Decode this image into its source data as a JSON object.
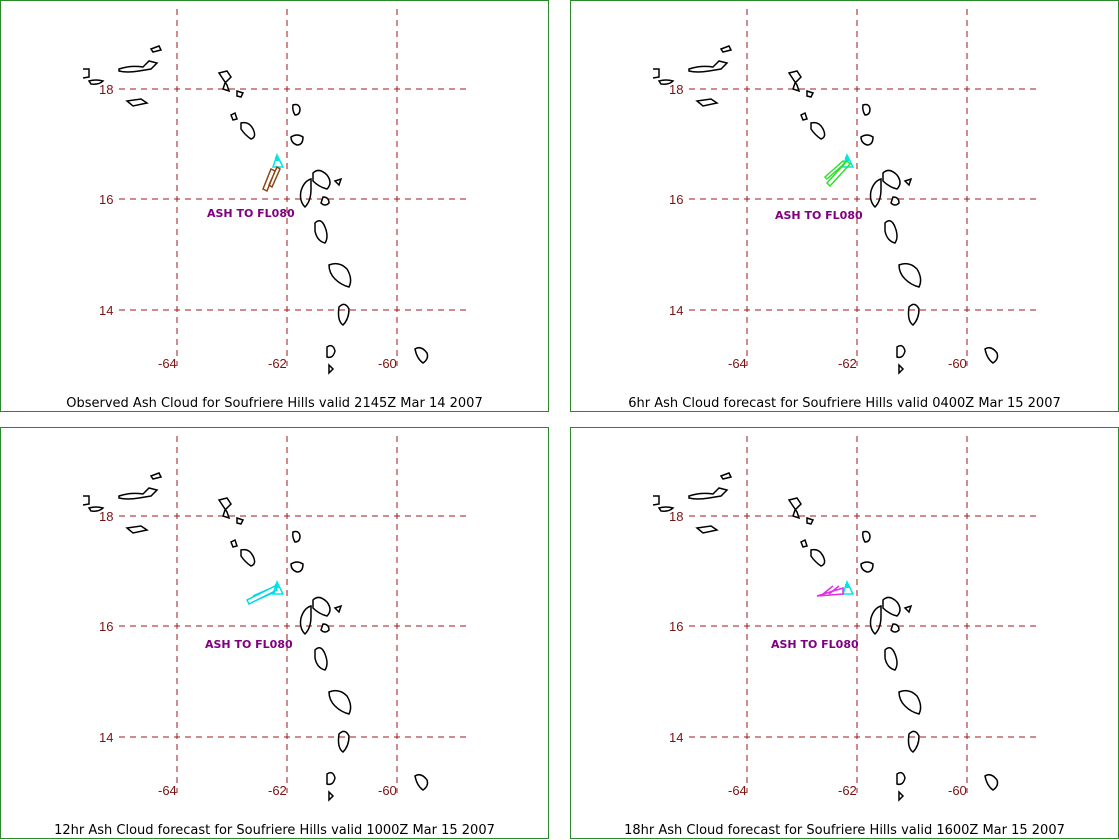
{
  "grid": {
    "lat_labels": [
      "18",
      "16",
      "14"
    ],
    "lon_labels": [
      "-64",
      "-62",
      "-60"
    ]
  },
  "volcano_color": "#00e5e5",
  "panels": [
    {
      "caption": "Observed Ash Cloud for Soufriere  Hills valid 2145Z Mar 14 2007",
      "ash_label": "ASH TO FL080",
      "ash_color": "#8b4513"
    },
    {
      "caption": "6hr Ash Cloud forecast for Soufriere  Hills valid 0400Z Mar 15 2007",
      "ash_label": "ASH TO FL080",
      "ash_color": "#33dd33"
    },
    {
      "caption": "12hr Ash Cloud forecast for Soufriere  Hills valid 1000Z Mar 15 2007",
      "ash_label": "ASH TO FL080",
      "ash_color": "#00d8e8"
    },
    {
      "caption": "18hr Ash Cloud forecast for Soufriere  Hills valid 1600Z Mar 15 2007",
      "ash_label": "ASH TO FL080",
      "ash_color": "#e030e0"
    }
  ]
}
